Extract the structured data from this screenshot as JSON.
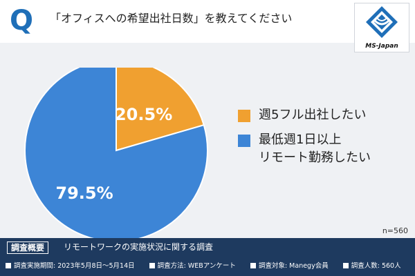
{
  "header": {
    "q_mark": "Q",
    "question": "「オフィスへの希望出社日数」を教えてください",
    "logo_text": "MS-Japan"
  },
  "chart_data": {
    "type": "pie",
    "slices": [
      {
        "label": "週5フル出社したい",
        "value": 20.5,
        "display": "20.5%",
        "color": "#f0a030"
      },
      {
        "label": "最低週1日以上\nリモート勤務したい",
        "value": 79.5,
        "display": "79.5%",
        "color": "#3d85d6"
      }
    ],
    "start_angle_deg": 0,
    "direction": "clockwise"
  },
  "sample": "n=560",
  "footer": {
    "tag": "調査概要",
    "title": "リモートワークの実施状況に関する調査",
    "details": [
      "調査実施期間: 2023年5月8日〜5月14日",
      "調査方法: WEBアンケート",
      "調査対象: Manegy会員",
      "調査人数: 560人"
    ]
  },
  "colors": {
    "brand": "#1f6fb8",
    "footer_bg": "#1e3a5f",
    "band_bg": "#eff1f4"
  }
}
